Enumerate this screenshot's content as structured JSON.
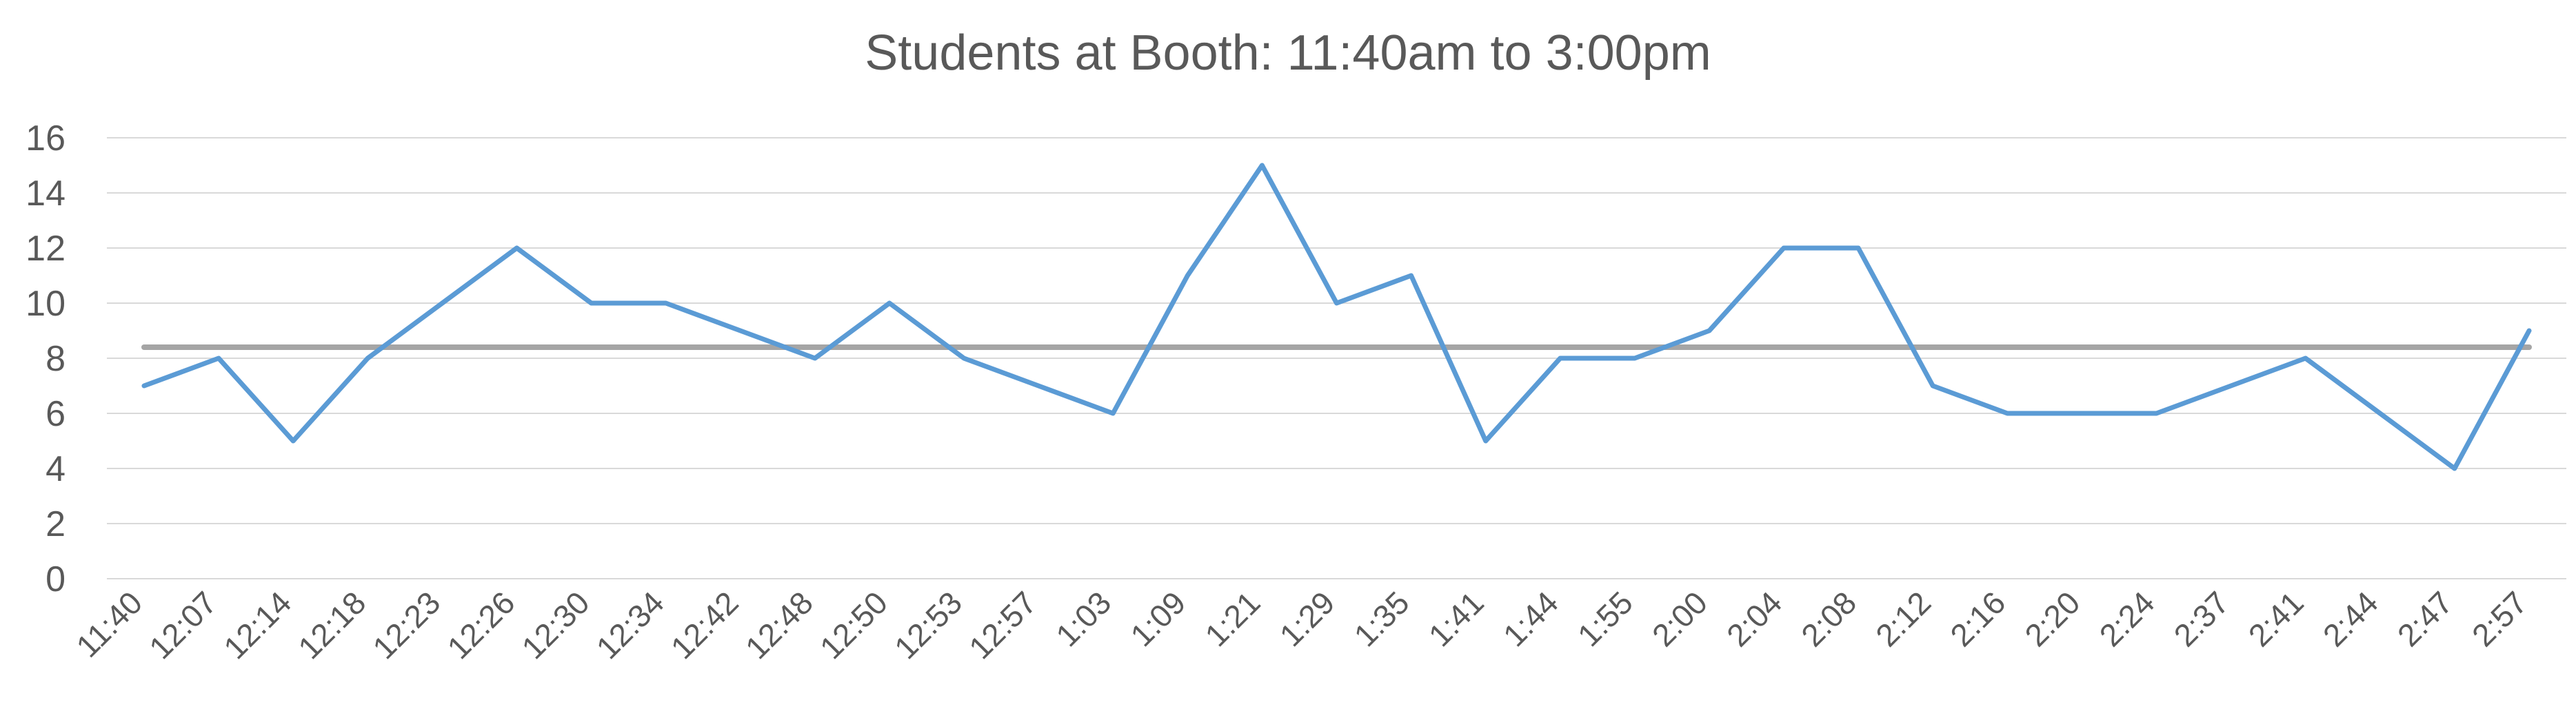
{
  "chart_data": {
    "type": "line",
    "title": "Students at Booth: 11:40am to 3:00pm",
    "xlabel": "",
    "ylabel": "",
    "ylim": [
      0,
      16
    ],
    "yticks": [
      0,
      2,
      4,
      6,
      8,
      10,
      12,
      14,
      16
    ],
    "grid": true,
    "legend": "none",
    "categories": [
      "11:40",
      "12:07",
      "12:14",
      "12:18",
      "12:23",
      "12:26",
      "12:30",
      "12:34",
      "12:42",
      "12:48",
      "12:50",
      "12:53",
      "12:57",
      "1:03",
      "1:09",
      "1:21",
      "1:29",
      "1:35",
      "1:41",
      "1:44",
      "1:55",
      "2:00",
      "2:04",
      "2:08",
      "2:12",
      "2:16",
      "2:20",
      "2:24",
      "2:37",
      "2:41",
      "2:44",
      "2:47",
      "2:57"
    ],
    "series": [
      {
        "color": "#5b9bd5",
        "values": [
          7,
          8,
          5,
          8,
          10,
          12,
          10,
          10,
          9,
          8,
          10,
          8,
          7,
          6,
          11,
          15,
          10,
          11,
          5,
          8,
          8,
          9,
          12,
          12,
          7,
          6,
          6,
          6,
          7,
          8,
          6,
          4,
          9
        ]
      },
      {
        "color": "#a5a5a5",
        "values": [
          8.4,
          8.4,
          8.4,
          8.4,
          8.4,
          8.4,
          8.4,
          8.4,
          8.4,
          8.4,
          8.4,
          8.4,
          8.4,
          8.4,
          8.4,
          8.4,
          8.4,
          8.4,
          8.4,
          8.4,
          8.4,
          8.4,
          8.4,
          8.4,
          8.4,
          8.4,
          8.4,
          8.4,
          8.4,
          8.4,
          8.4,
          8.4,
          8.4
        ]
      }
    ]
  }
}
